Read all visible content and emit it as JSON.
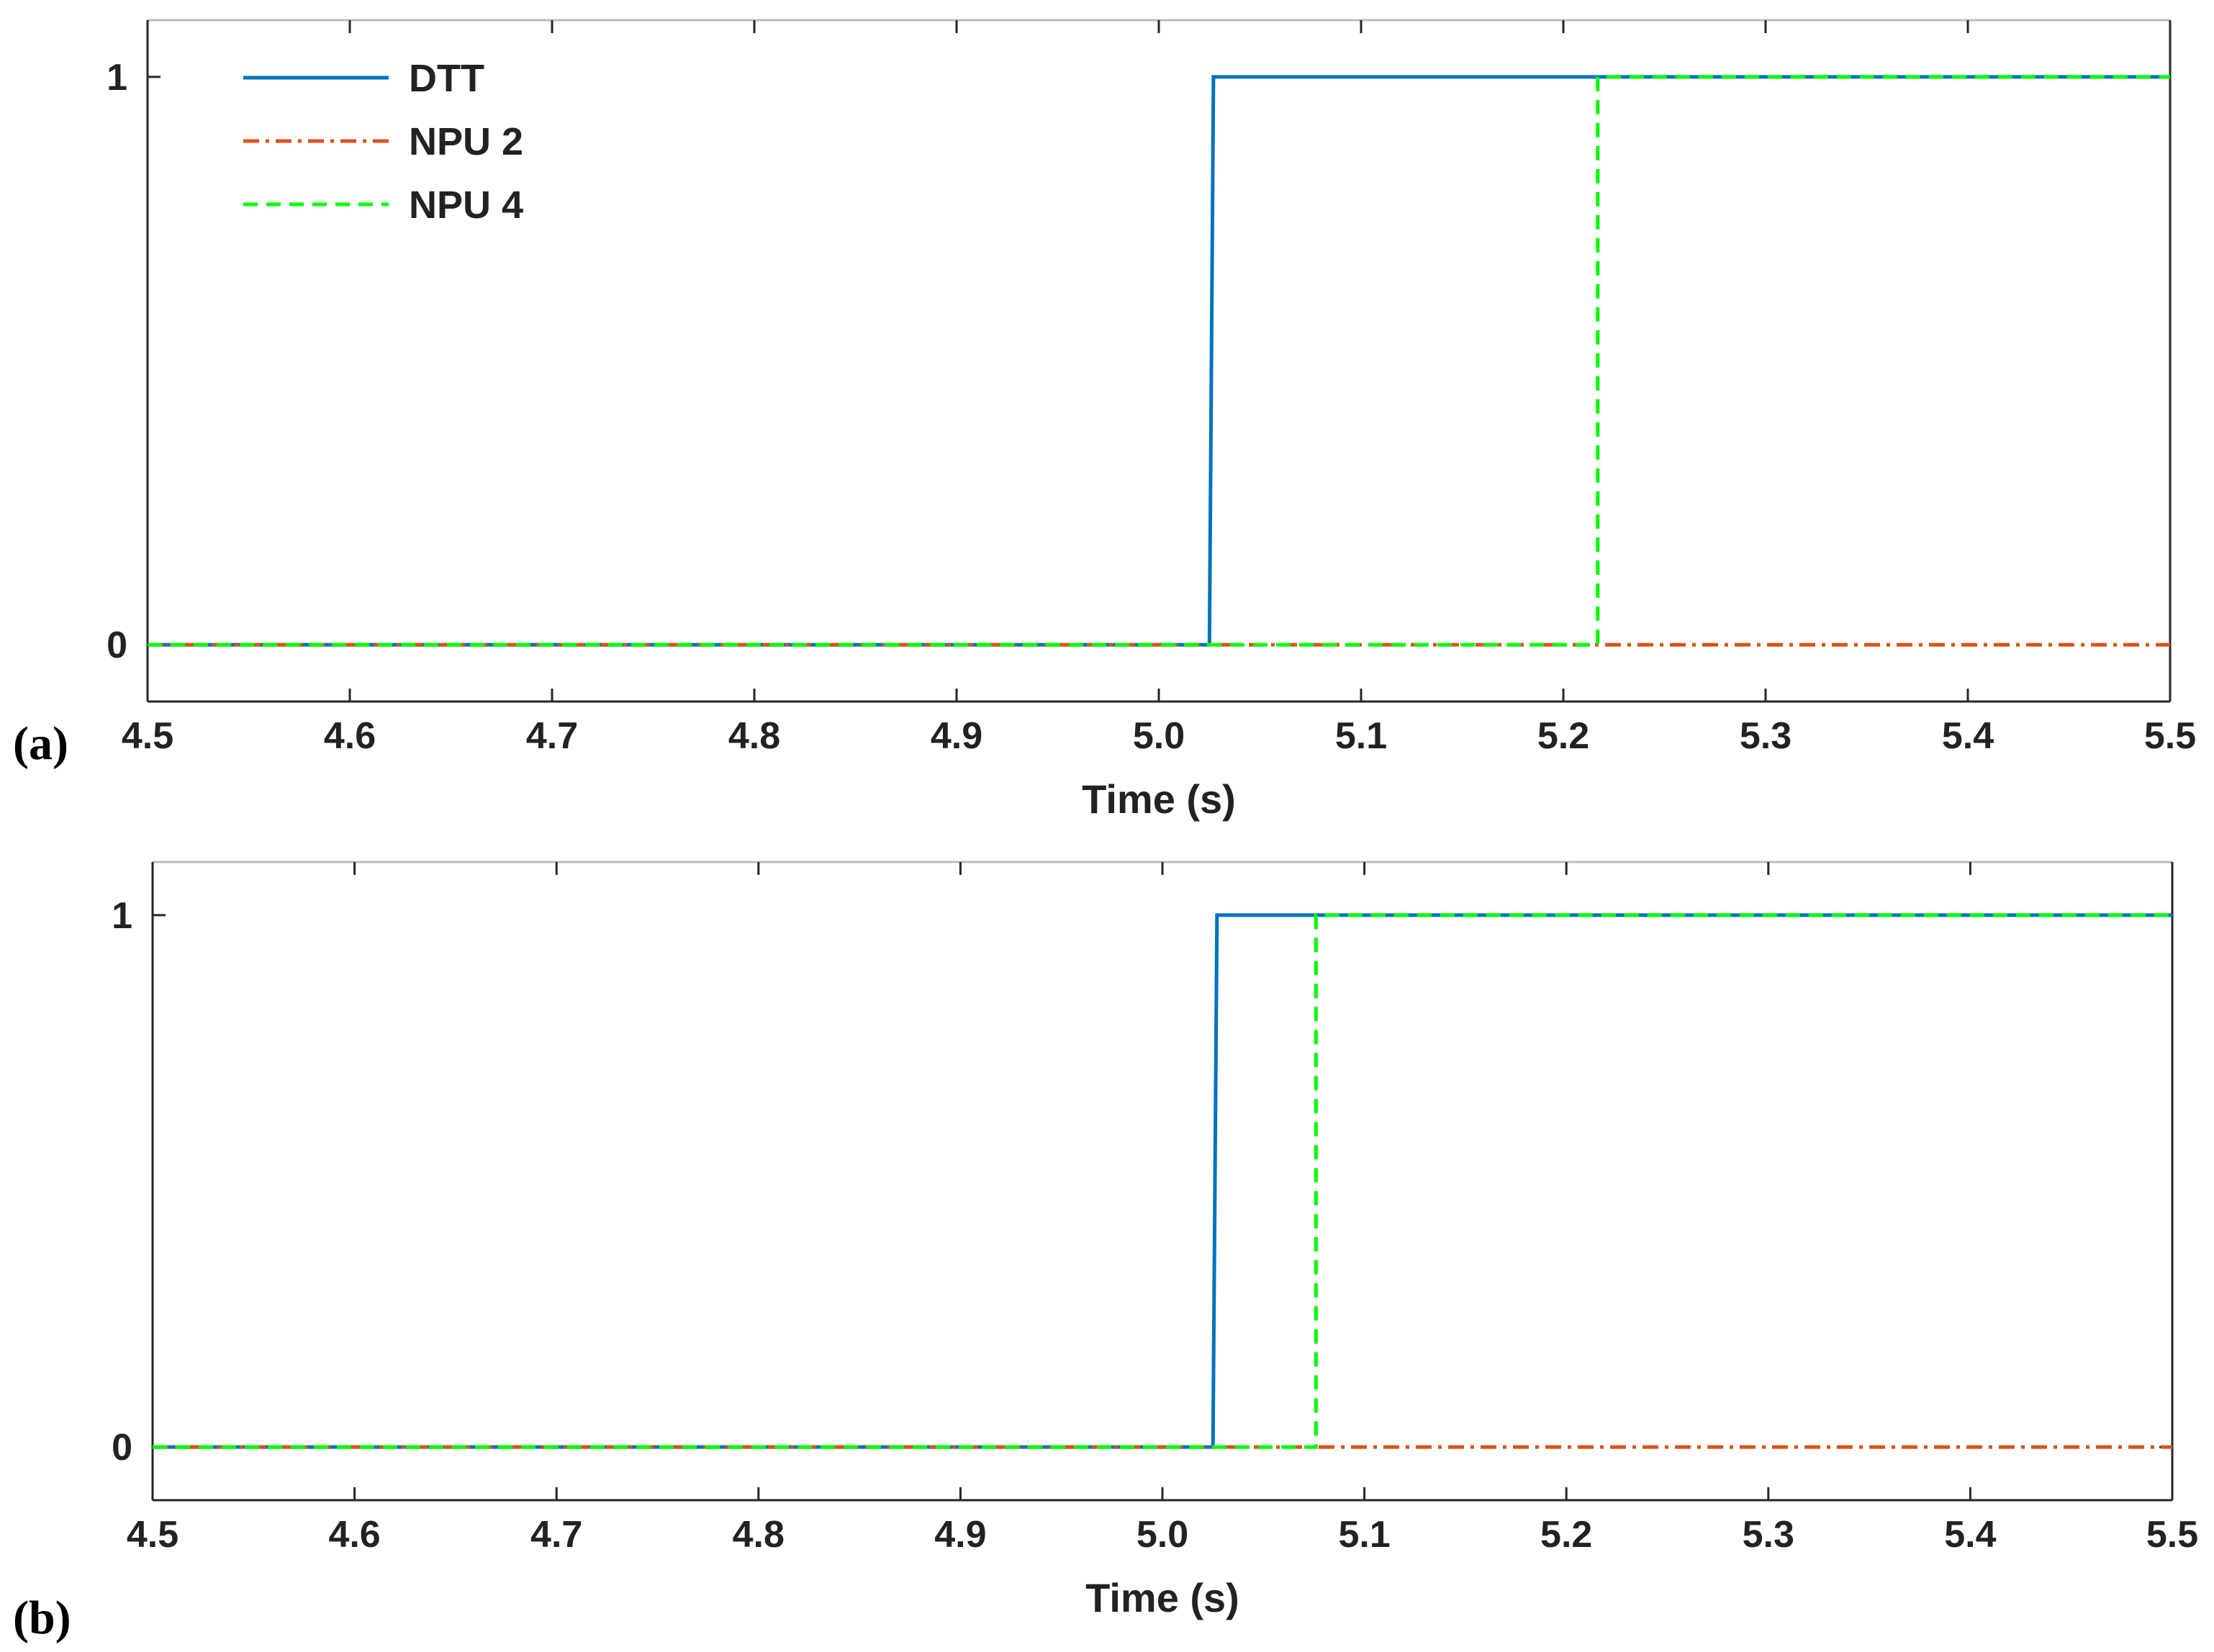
{
  "chart_data": [
    {
      "type": "line",
      "panel_label": "(a)",
      "xlabel": "Time (s)",
      "ylabel": "",
      "xlim": [
        4.5,
        5.5
      ],
      "ylim": [
        -0.1,
        1.1
      ],
      "x_ticks": [
        "4.5",
        "4.6",
        "4.7",
        "4.8",
        "4.9",
        "5.0",
        "5.1",
        "5.2",
        "5.3",
        "5.4",
        "5.5"
      ],
      "y_ticks": [
        "0",
        "1"
      ],
      "grid": false,
      "legend": {
        "placement": "top-left"
      },
      "series": [
        {
          "name": "DTT",
          "color": "#0072BD",
          "style": "solid",
          "x": [
            4.5,
            5.025,
            5.027,
            5.5
          ],
          "y": [
            0,
            0,
            1,
            1
          ]
        },
        {
          "name": "NPU 2",
          "color": "#D95319",
          "style": "dash-dot",
          "x": [
            4.5,
            5.5
          ],
          "y": [
            0,
            0
          ]
        },
        {
          "name": "NPU 4",
          "color": "#00FF00",
          "style": "dashed",
          "x": [
            4.5,
            5.217,
            5.217,
            5.5
          ],
          "y": [
            0,
            0,
            1,
            1
          ]
        }
      ]
    },
    {
      "type": "line",
      "panel_label": "(b)",
      "xlabel": "Time (s)",
      "ylabel": "",
      "xlim": [
        4.5,
        5.5
      ],
      "ylim": [
        -0.1,
        1.1
      ],
      "x_ticks": [
        "4.5",
        "4.6",
        "4.7",
        "4.8",
        "4.9",
        "5.0",
        "5.1",
        "5.2",
        "5.3",
        "5.4",
        "5.5"
      ],
      "y_ticks": [
        "0",
        "1"
      ],
      "grid": false,
      "legend": null,
      "series": [
        {
          "name": "DTT",
          "color": "#0072BD",
          "style": "solid",
          "x": [
            4.5,
            5.025,
            5.027,
            5.5
          ],
          "y": [
            0,
            0,
            1,
            1
          ]
        },
        {
          "name": "NPU 2",
          "color": "#D95319",
          "style": "dash-dot",
          "x": [
            4.5,
            5.5
          ],
          "y": [
            0,
            0
          ]
        },
        {
          "name": "NPU 4",
          "color": "#00FF00",
          "style": "dashed",
          "x": [
            4.5,
            5.076,
            5.076,
            5.5
          ],
          "y": [
            0,
            0,
            1,
            1
          ]
        }
      ]
    }
  ]
}
